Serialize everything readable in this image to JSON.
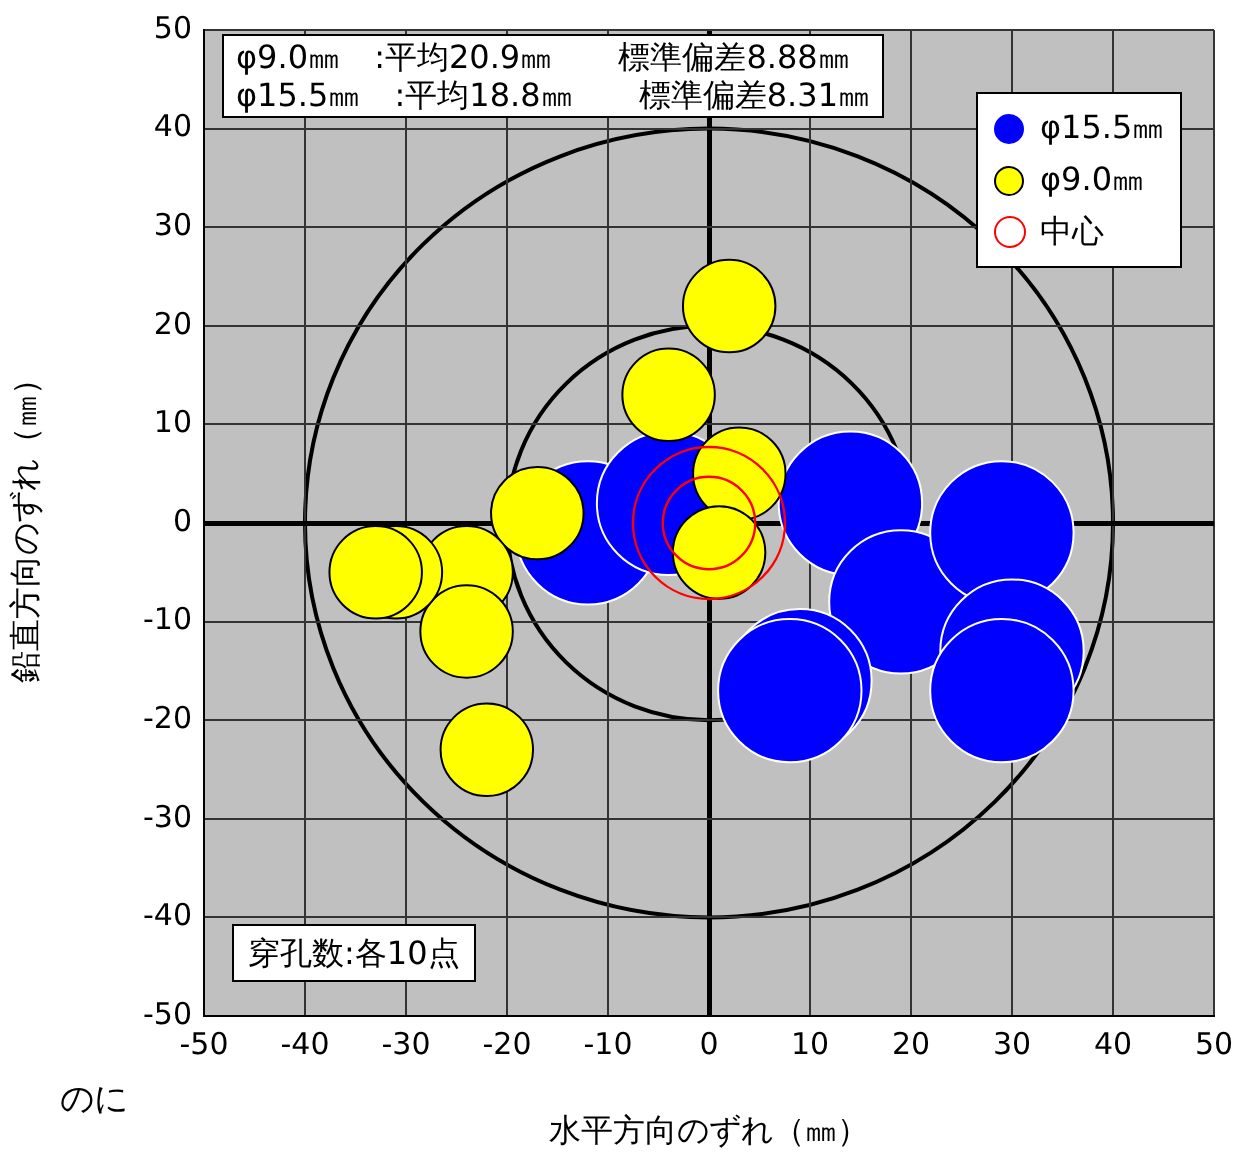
{
  "chart_data": {
    "type": "bubble",
    "xlabel": "水平方向のずれ（㎜）",
    "ylabel": "鉛直方向のずれ（㎜）",
    "xlim": [
      -50,
      50
    ],
    "ylim": [
      -50,
      50
    ],
    "xticks": [
      -50,
      -40,
      -30,
      -20,
      -10,
      0,
      10,
      20,
      30,
      40,
      50
    ],
    "yticks": [
      -50,
      -40,
      -30,
      -20,
      -10,
      0,
      10,
      20,
      30,
      40,
      50
    ],
    "grid": true,
    "legend": "top right",
    "annotations": [
      "φ9.0㎜ :平均20.9㎜　 標準偏差8.88㎜",
      "φ15.5㎜ :平均18.8㎜　 標準偏差8.31㎜",
      "穿孔数:各10点",
      "のに"
    ],
    "series": [
      {
        "type": "bubble",
        "name": "φ15.5㎜",
        "color": "#0000ff",
        "x": [
          -12,
          -4,
          14,
          19,
          29,
          30,
          29,
          9,
          8
        ],
        "values": [
          -1,
          2,
          2,
          -8,
          -1,
          -13,
          -17,
          -16,
          -17
        ],
        "sizes": [
          0.89,
          0.89,
          0.89,
          0.89,
          0.89,
          0.89,
          0.89,
          0.89,
          0.89
        ]
      },
      {
        "type": "bubble",
        "name": "φ9.0㎜",
        "color": "#ffff00",
        "x": [
          2,
          -4,
          3,
          1,
          -17,
          -24,
          -24,
          -31,
          -33,
          -22
        ],
        "values": [
          22,
          13,
          5,
          -3,
          1,
          -5,
          -11,
          -5,
          -5,
          -23
        ],
        "sizes": [
          0.37,
          0.37,
          0.37,
          0.37,
          0.37,
          0.37,
          0.37,
          0.37,
          0.37,
          0.37
        ]
      },
      {
        "type": "scatter",
        "name": "中心",
        "color": "#ff0000",
        "x": [
          0,
          0
        ],
        "values": [
          0,
          0
        ],
        "sizes": [
          1,
          0.37
        ]
      }
    ]
  }
}
